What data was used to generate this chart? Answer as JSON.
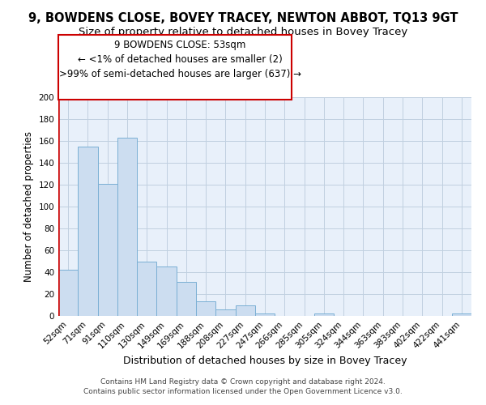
{
  "title": "9, BOWDENS CLOSE, BOVEY TRACEY, NEWTON ABBOT, TQ13 9GT",
  "subtitle": "Size of property relative to detached houses in Bovey Tracey",
  "xlabel": "Distribution of detached houses by size in Bovey Tracey",
  "ylabel": "Number of detached properties",
  "categories": [
    "52sqm",
    "71sqm",
    "91sqm",
    "110sqm",
    "130sqm",
    "149sqm",
    "169sqm",
    "188sqm",
    "208sqm",
    "227sqm",
    "247sqm",
    "266sqm",
    "285sqm",
    "305sqm",
    "324sqm",
    "344sqm",
    "363sqm",
    "383sqm",
    "402sqm",
    "422sqm",
    "441sqm"
  ],
  "values": [
    42,
    155,
    121,
    163,
    50,
    45,
    31,
    13,
    6,
    10,
    2,
    0,
    0,
    2,
    0,
    0,
    0,
    0,
    0,
    0,
    2
  ],
  "bar_color": "#ccddf0",
  "bar_edge_color": "#7aafd4",
  "annotation_line1": "9 BOWDENS CLOSE: 53sqm",
  "annotation_line2": "← <1% of detached houses are smaller (2)",
  "annotation_line3": ">99% of semi-detached houses are larger (637) →",
  "annotation_box_facecolor": "#ffffff",
  "annotation_box_edgecolor": "#cc0000",
  "ylim": [
    0,
    200
  ],
  "yticks": [
    0,
    20,
    40,
    60,
    80,
    100,
    120,
    140,
    160,
    180,
    200
  ],
  "grid_color": "#c0d0e0",
  "background_color": "#e8f0fa",
  "red_line_color": "#cc0000",
  "footer_line1": "Contains HM Land Registry data © Crown copyright and database right 2024.",
  "footer_line2": "Contains public sector information licensed under the Open Government Licence v3.0.",
  "title_fontsize": 10.5,
  "subtitle_fontsize": 9.5,
  "xlabel_fontsize": 9,
  "ylabel_fontsize": 8.5,
  "tick_fontsize": 7.5,
  "annotation_fontsize": 8.5,
  "footer_fontsize": 6.5
}
